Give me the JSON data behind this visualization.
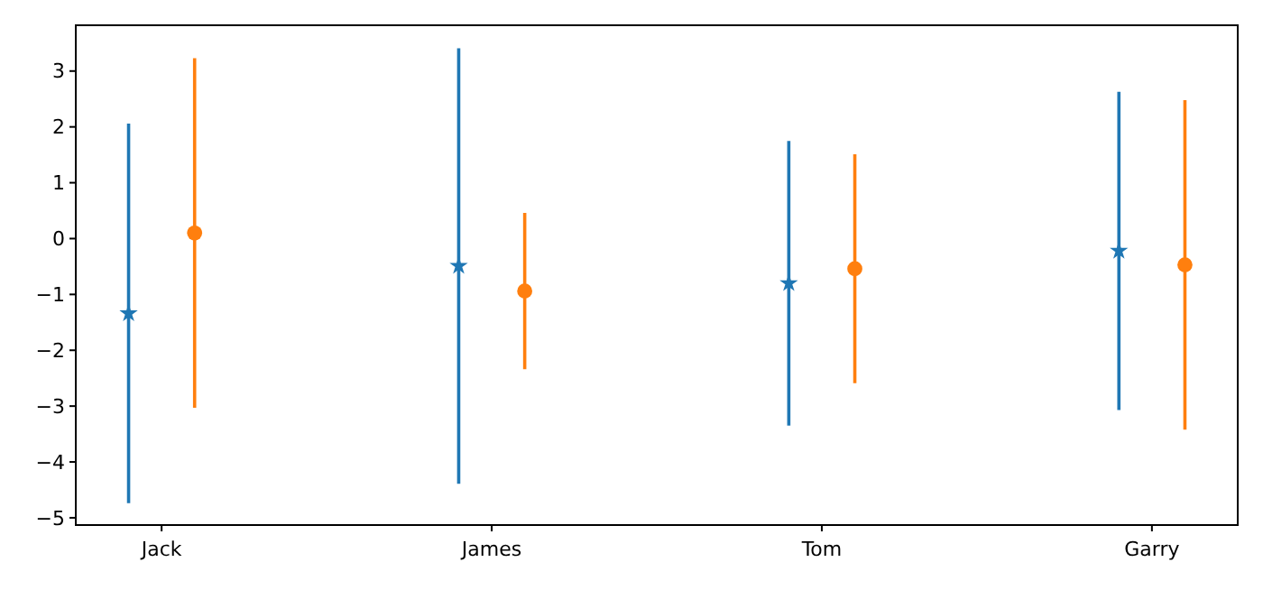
{
  "chart_data": {
    "type": "scatter",
    "categories": [
      "Jack",
      "James",
      "Tom",
      "Garry"
    ],
    "ylim": [
      -5.13,
      3.82
    ],
    "yticks": [
      -5,
      -4,
      -3,
      -2,
      -1,
      0,
      1,
      2,
      3
    ],
    "grid": false,
    "series": [
      {
        "color": "#1f77b4",
        "marker": "star",
        "values": [
          -1.34,
          -0.49,
          -0.8,
          -0.22
        ],
        "errors": [
          3.4,
          3.9,
          2.55,
          2.85
        ]
      },
      {
        "color": "#ff7f0e",
        "marker": "circle",
        "values": [
          0.1,
          -0.94,
          -0.54,
          -0.47
        ],
        "errors": [
          3.13,
          1.4,
          2.05,
          2.95
        ]
      }
    ]
  }
}
